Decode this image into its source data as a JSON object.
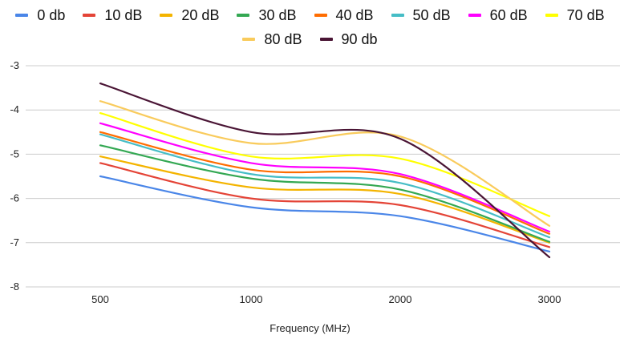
{
  "chart_data": {
    "type": "line",
    "xlabel": "Frequency (MHz)",
    "ylabel": "",
    "title": "",
    "categories": [
      "500",
      "1000",
      "2000",
      "3000"
    ],
    "ylim": [
      -8,
      -3
    ],
    "yticks": [
      "-3",
      "-4",
      "-5",
      "-6",
      "-7",
      "-8"
    ],
    "grid": true,
    "legend_position": "top",
    "smooth": true,
    "series": [
      {
        "name": "0 db",
        "color": "#4a86e8",
        "values": [
          -5.5,
          -6.2,
          -6.4,
          -7.2
        ]
      },
      {
        "name": "10 dB",
        "color": "#e44437",
        "values": [
          -5.2,
          -6.0,
          -6.15,
          -7.1
        ]
      },
      {
        "name": "20 dB",
        "color": "#f4b400",
        "values": [
          -5.05,
          -5.75,
          -5.9,
          -7.0
        ]
      },
      {
        "name": "30 dB",
        "color": "#34a853",
        "values": [
          -4.8,
          -5.55,
          -5.8,
          -6.98
        ]
      },
      {
        "name": "40 dB",
        "color": "#ff6d01",
        "values": [
          -4.5,
          -5.35,
          -5.5,
          -6.8
        ]
      },
      {
        "name": "50 dB",
        "color": "#46bdc6",
        "values": [
          -4.55,
          -5.45,
          -5.65,
          -6.88
        ]
      },
      {
        "name": "60 dB",
        "color": "#ff00ff",
        "values": [
          -4.3,
          -5.2,
          -5.45,
          -6.75
        ]
      },
      {
        "name": "70 dB",
        "color": "#ffff00",
        "values": [
          -4.07,
          -5.05,
          -5.1,
          -6.4
        ]
      },
      {
        "name": "80 dB",
        "color": "#f9cb5c",
        "values": [
          -3.8,
          -4.75,
          -4.6,
          -6.62
        ]
      },
      {
        "name": "90 db",
        "color": "#4a1535",
        "values": [
          -3.4,
          -4.5,
          -4.65,
          -7.33
        ]
      }
    ]
  }
}
